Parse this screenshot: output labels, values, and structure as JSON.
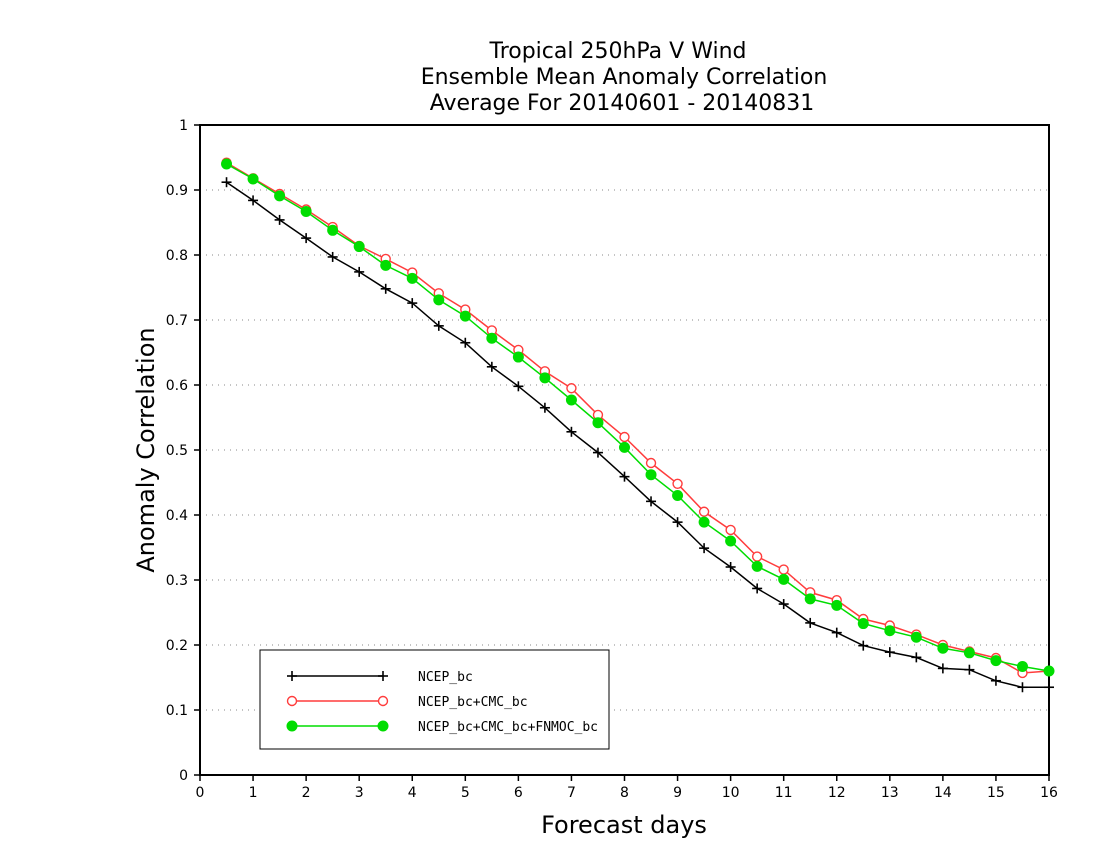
{
  "chart_data": {
    "type": "line",
    "title": [
      "Tropical 250hPa V Wind",
      "Ensemble Mean Anomaly Correlation",
      "Average For 20140601 - 20140831"
    ],
    "xlabel": "Forecast days",
    "ylabel": "Anomaly Correlation",
    "xlim": [
      0,
      16
    ],
    "ylim": [
      0,
      1
    ],
    "xticks": [
      0,
      1,
      2,
      3,
      4,
      5,
      6,
      7,
      8,
      9,
      10,
      11,
      12,
      13,
      14,
      15,
      16
    ],
    "yticks": [
      0,
      0.1,
      0.2,
      0.3,
      0.4,
      0.5,
      0.6,
      0.7,
      0.8,
      0.9,
      1
    ],
    "ytick_labels": [
      "0",
      "0.1",
      "0.2",
      "0.3",
      "0.4",
      "0.5",
      "0.6",
      "0.7",
      "0.8",
      "0.9",
      "1"
    ],
    "grid": "horizontal dotted",
    "legend_position": "bottom-left",
    "x": [
      0.5,
      1,
      1.5,
      2,
      2.5,
      3,
      3.5,
      4,
      4.5,
      5,
      5.5,
      6,
      6.5,
      7,
      7.5,
      8,
      8.5,
      9,
      9.5,
      10,
      10.5,
      11,
      11.5,
      12,
      12.5,
      13,
      13.5,
      14,
      14.5,
      15,
      15.5,
      16
    ],
    "series": [
      {
        "name": "NCEP_bc",
        "color": "#000000",
        "marker": "plus",
        "values": [
          0.912,
          0.884,
          0.854,
          0.826,
          0.797,
          0.774,
          0.748,
          0.726,
          0.691,
          0.665,
          0.628,
          0.598,
          0.565,
          0.528,
          0.496,
          0.459,
          0.421,
          0.389,
          0.349,
          0.32,
          0.287,
          0.263,
          0.234,
          0.219,
          0.199,
          0.189,
          0.181,
          0.164,
          0.162,
          0.145,
          0.135,
          0.135
        ]
      },
      {
        "name": "NCEP_bc+CMC_bc",
        "color": "#ff3c3c",
        "marker": "open-circle",
        "values": [
          0.942,
          0.918,
          0.894,
          0.87,
          0.843,
          0.814,
          0.794,
          0.773,
          0.741,
          0.716,
          0.684,
          0.654,
          0.621,
          0.595,
          0.554,
          0.52,
          0.48,
          0.448,
          0.405,
          0.377,
          0.336,
          0.316,
          0.281,
          0.269,
          0.24,
          0.23,
          0.216,
          0.2,
          0.19,
          0.18,
          0.157,
          0.16
        ]
      },
      {
        "name": "NCEP_bc+CMC_bc+FNMOC_bc",
        "color": "#00dd00",
        "marker": "filled-circle",
        "values": [
          0.94,
          0.917,
          0.891,
          0.867,
          0.838,
          0.813,
          0.784,
          0.764,
          0.731,
          0.706,
          0.672,
          0.643,
          0.611,
          0.577,
          0.542,
          0.504,
          0.462,
          0.43,
          0.389,
          0.36,
          0.321,
          0.301,
          0.271,
          0.261,
          0.233,
          0.222,
          0.212,
          0.195,
          0.188,
          0.176,
          0.167,
          0.16
        ]
      }
    ]
  }
}
